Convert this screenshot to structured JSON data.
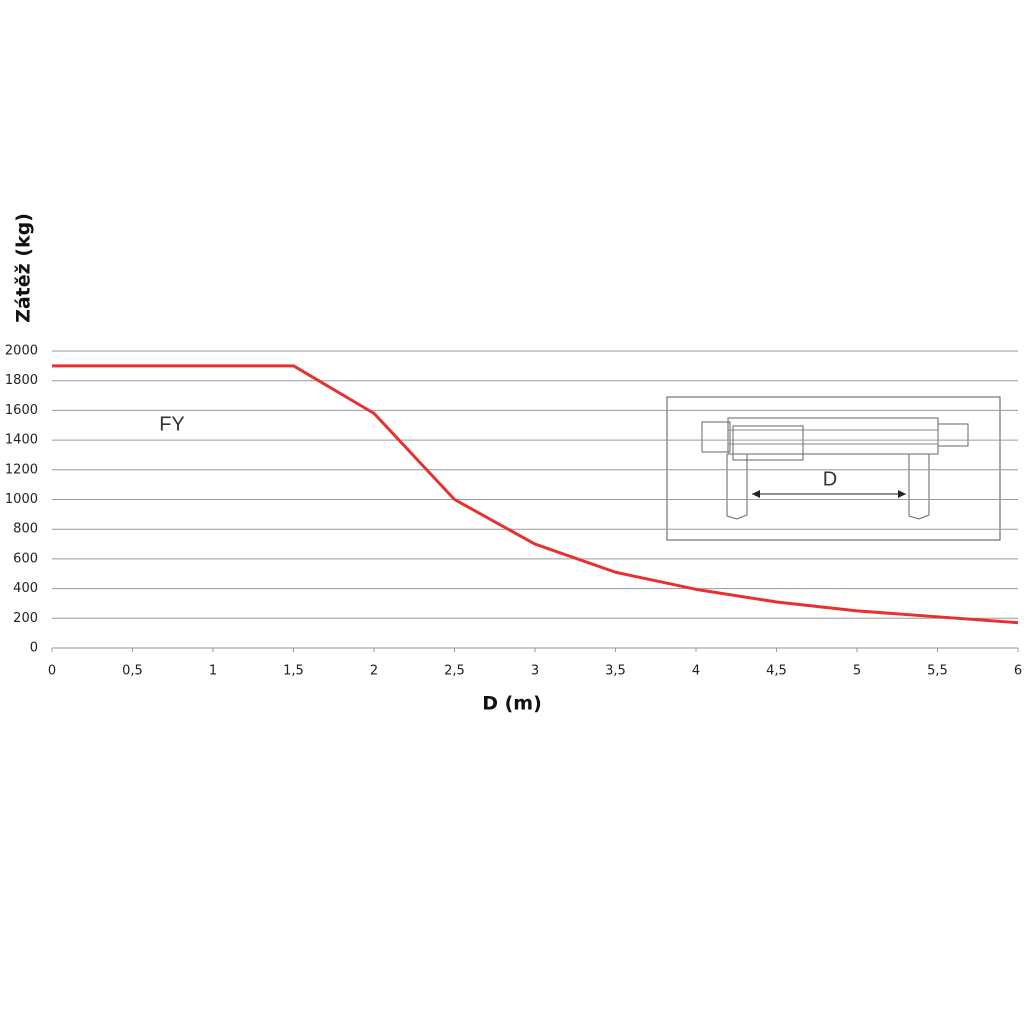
{
  "chart_data": {
    "type": "line",
    "x": [
      0,
      1.5,
      2,
      2.5,
      3,
      3.5,
      4,
      4.5,
      5,
      5.5,
      6
    ],
    "series": [
      {
        "name": "FY",
        "color": "#e8312f",
        "values": [
          1900,
          1900,
          1580,
          1000,
          700,
          510,
          395,
          310,
          250,
          210,
          170
        ]
      }
    ],
    "xlabel": "D (m)",
    "ylabel": "Zátěž (kg)",
    "inset_label": "D",
    "xlim": [
      0,
      6
    ],
    "xticks": [
      0,
      {
        "value": 0.5,
        "label": "0,5"
      },
      1,
      {
        "value": 1.5,
        "label": "1,5"
      },
      2,
      {
        "value": 2.5,
        "label": "2,5"
      },
      3,
      {
        "value": 3.5,
        "label": "3,5"
      },
      4,
      {
        "value": 4.5,
        "label": "4,5"
      },
      5,
      {
        "value": 5.5,
        "label": "5,5"
      },
      6
    ],
    "ylim": [
      0,
      2000
    ],
    "yticks": [
      0,
      200,
      400,
      600,
      800,
      1000,
      1200,
      1400,
      1600,
      1800,
      2000
    ],
    "grid": true
  }
}
